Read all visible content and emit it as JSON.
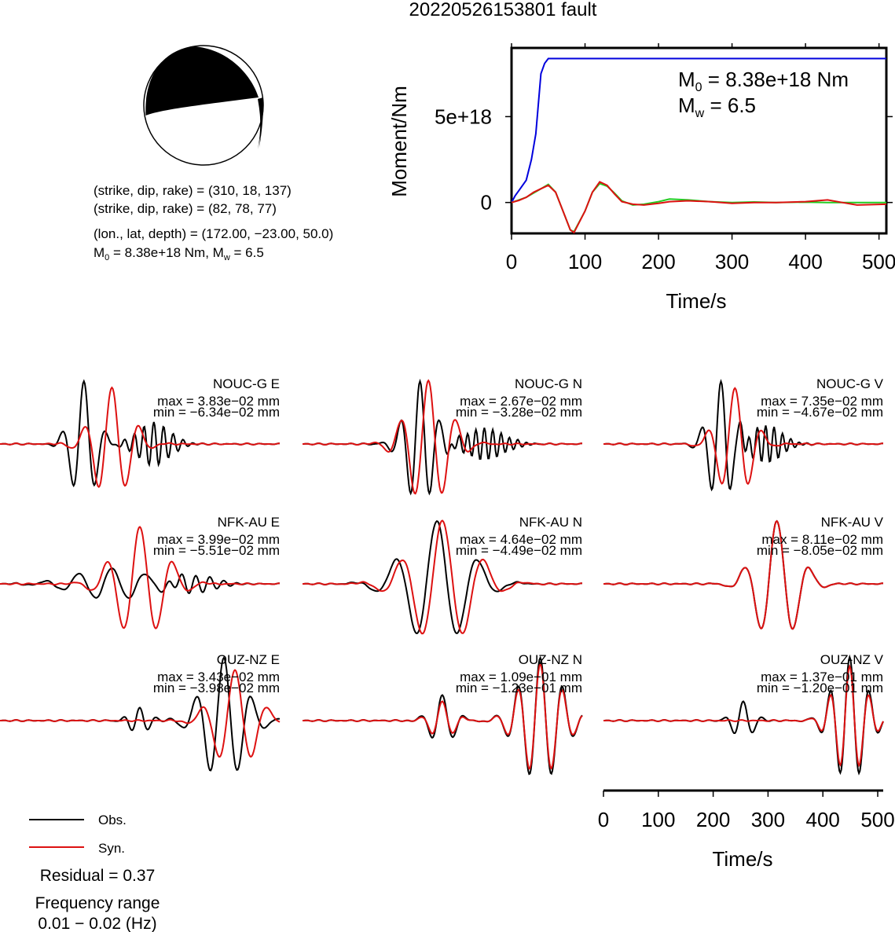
{
  "title": "20220526153801 fault",
  "focal": {
    "line1": "(strike, dip, rake) = (310, 18, 137)",
    "line2": "(strike, dip, rake) = (82, 78, 77)",
    "location": "(lon., lat, depth) = (172.00, −23.00, 50.0)",
    "moment_prefix": "M",
    "moment_sub": "0",
    "moment_text": " = 8.38e+18 Nm, M",
    "mw_sub": "w",
    "mw_text": " = 6.5"
  },
  "legend": {
    "obs": "Obs.",
    "syn": "Syn.",
    "obs_color": "#000000",
    "syn_color": "#dd1111"
  },
  "residual": "Residual = 0.37",
  "freq_label": "Frequency range",
  "freq_value": "0.01 − 0.02 (Hz)",
  "chart_data": [
    {
      "type": "line",
      "title": "",
      "xlabel": "Time/s",
      "ylabel": "Moment/Nm",
      "xlim": [
        0,
        510
      ],
      "ylim": [
        -1.8e+18,
        9e+18
      ],
      "x_ticks": [
        "0",
        "100",
        "200",
        "300",
        "400",
        "500"
      ],
      "y_ticks": [
        "0",
        "5e+18"
      ],
      "annotation_m0": {
        "m": "M",
        "sub": "0",
        "text": " = 8.38e+18 Nm"
      },
      "annotation_mw": {
        "m": "M",
        "sub": "w",
        "text": " = 6.5"
      },
      "series": [
        {
          "color": "#0000dd",
          "x": [
            0,
            5,
            10,
            20,
            27,
            33,
            40,
            45,
            50,
            60,
            510
          ],
          "y": [
            0,
            4e+17,
            7e+17,
            1.3e+18,
            2.5e+18,
            4e+18,
            7.5e+18,
            8.1e+18,
            8.38e+18,
            8.38e+18,
            8.38e+18
          ]
        },
        {
          "color": "#22cc22",
          "x": [
            0,
            10,
            20,
            30,
            40,
            50,
            60,
            70,
            80,
            85,
            100,
            110,
            120,
            130,
            140,
            150,
            165,
            180,
            200,
            215,
            240,
            270,
            300,
            330,
            360,
            400,
            430,
            450,
            470,
            510
          ],
          "y": [
            0,
            1.5e+17,
            3e+17,
            5.5e+17,
            8e+17,
            1.05e+18,
            6e+17,
            -5e+17,
            -1.6e+18,
            -1.7e+18,
            -5e+17,
            6e+17,
            1.1e+18,
            9.5e+17,
            5.5e+17,
            1e+17,
            -1.5e+17,
            -1e+17,
            5e+16,
            2e+17,
            1.5e+17,
            5e+16,
            0.0,
            3e+16,
            0.0,
            2e+16,
            0.0,
            0.0,
            0.0,
            0.0
          ]
        },
        {
          "color": "#dd1111",
          "x": [
            0,
            10,
            20,
            30,
            40,
            50,
            60,
            70,
            80,
            85,
            100,
            110,
            120,
            130,
            140,
            150,
            165,
            180,
            200,
            215,
            240,
            270,
            300,
            330,
            360,
            400,
            430,
            450,
            470,
            510
          ],
          "y": [
            0,
            1.2e+17,
            3e+17,
            6e+17,
            8e+17,
            1e+18,
            6e+17,
            -5e+17,
            -1.6e+18,
            -1.75e+18,
            -5e+17,
            6e+17,
            1.2e+18,
            1e+18,
            5e+17,
            5e+16,
            -1e+17,
            -1.5e+17,
            -5e+16,
            5e+16,
            1e+17,
            5e+16,
            -5e+16,
            0.0,
            0.0,
            5e+16,
            1.5e+17,
            0.0,
            -1.5e+17,
            -1e+17
          ]
        }
      ]
    },
    {
      "type": "line",
      "description_of_grid": "3 rows x 3 columns of waveform panels",
      "xlabel": "Time/s",
      "xlim": [
        0,
        510
      ],
      "x_ticks": [
        "0",
        "100",
        "200",
        "300",
        "400",
        "500"
      ],
      "series_names": [
        "Obs.",
        "Syn."
      ],
      "panels": [
        {
          "label": "NOUC-G E",
          "max": "max = 3.83e−02 mm",
          "min": "min = −6.34e−02 mm"
        },
        {
          "label": "NOUC-G N",
          "max": "max = 2.67e−02 mm",
          "min": "min = −3.28e−02 mm"
        },
        {
          "label": "NOUC-G V",
          "max": "max = 7.35e−02 mm",
          "min": "min = −4.67e−02 mm"
        },
        {
          "label": "NFK-AU E",
          "max": "max = 3.99e−02 mm",
          "min": "min = −5.51e−02 mm"
        },
        {
          "label": "NFK-AU N",
          "max": "max = 4.64e−02 mm",
          "min": "min = −4.49e−02 mm"
        },
        {
          "label": "NFK-AU V",
          "max": "max = 8.11e−02 mm",
          "min": "min = −8.05e−02 mm"
        },
        {
          "label": "OUZ-NZ E",
          "max": "max = 3.43e−02 mm",
          "min": "min = −3.98e−02 mm"
        },
        {
          "label": "OUZ-NZ N",
          "max": "max = 1.09e−01 mm",
          "min": "min = −1.23e−01 mm"
        },
        {
          "label": "OUZ-NZ V",
          "max": "max = 1.37e−01 mm",
          "min": "min = −1.20e−01 mm"
        }
      ]
    }
  ]
}
